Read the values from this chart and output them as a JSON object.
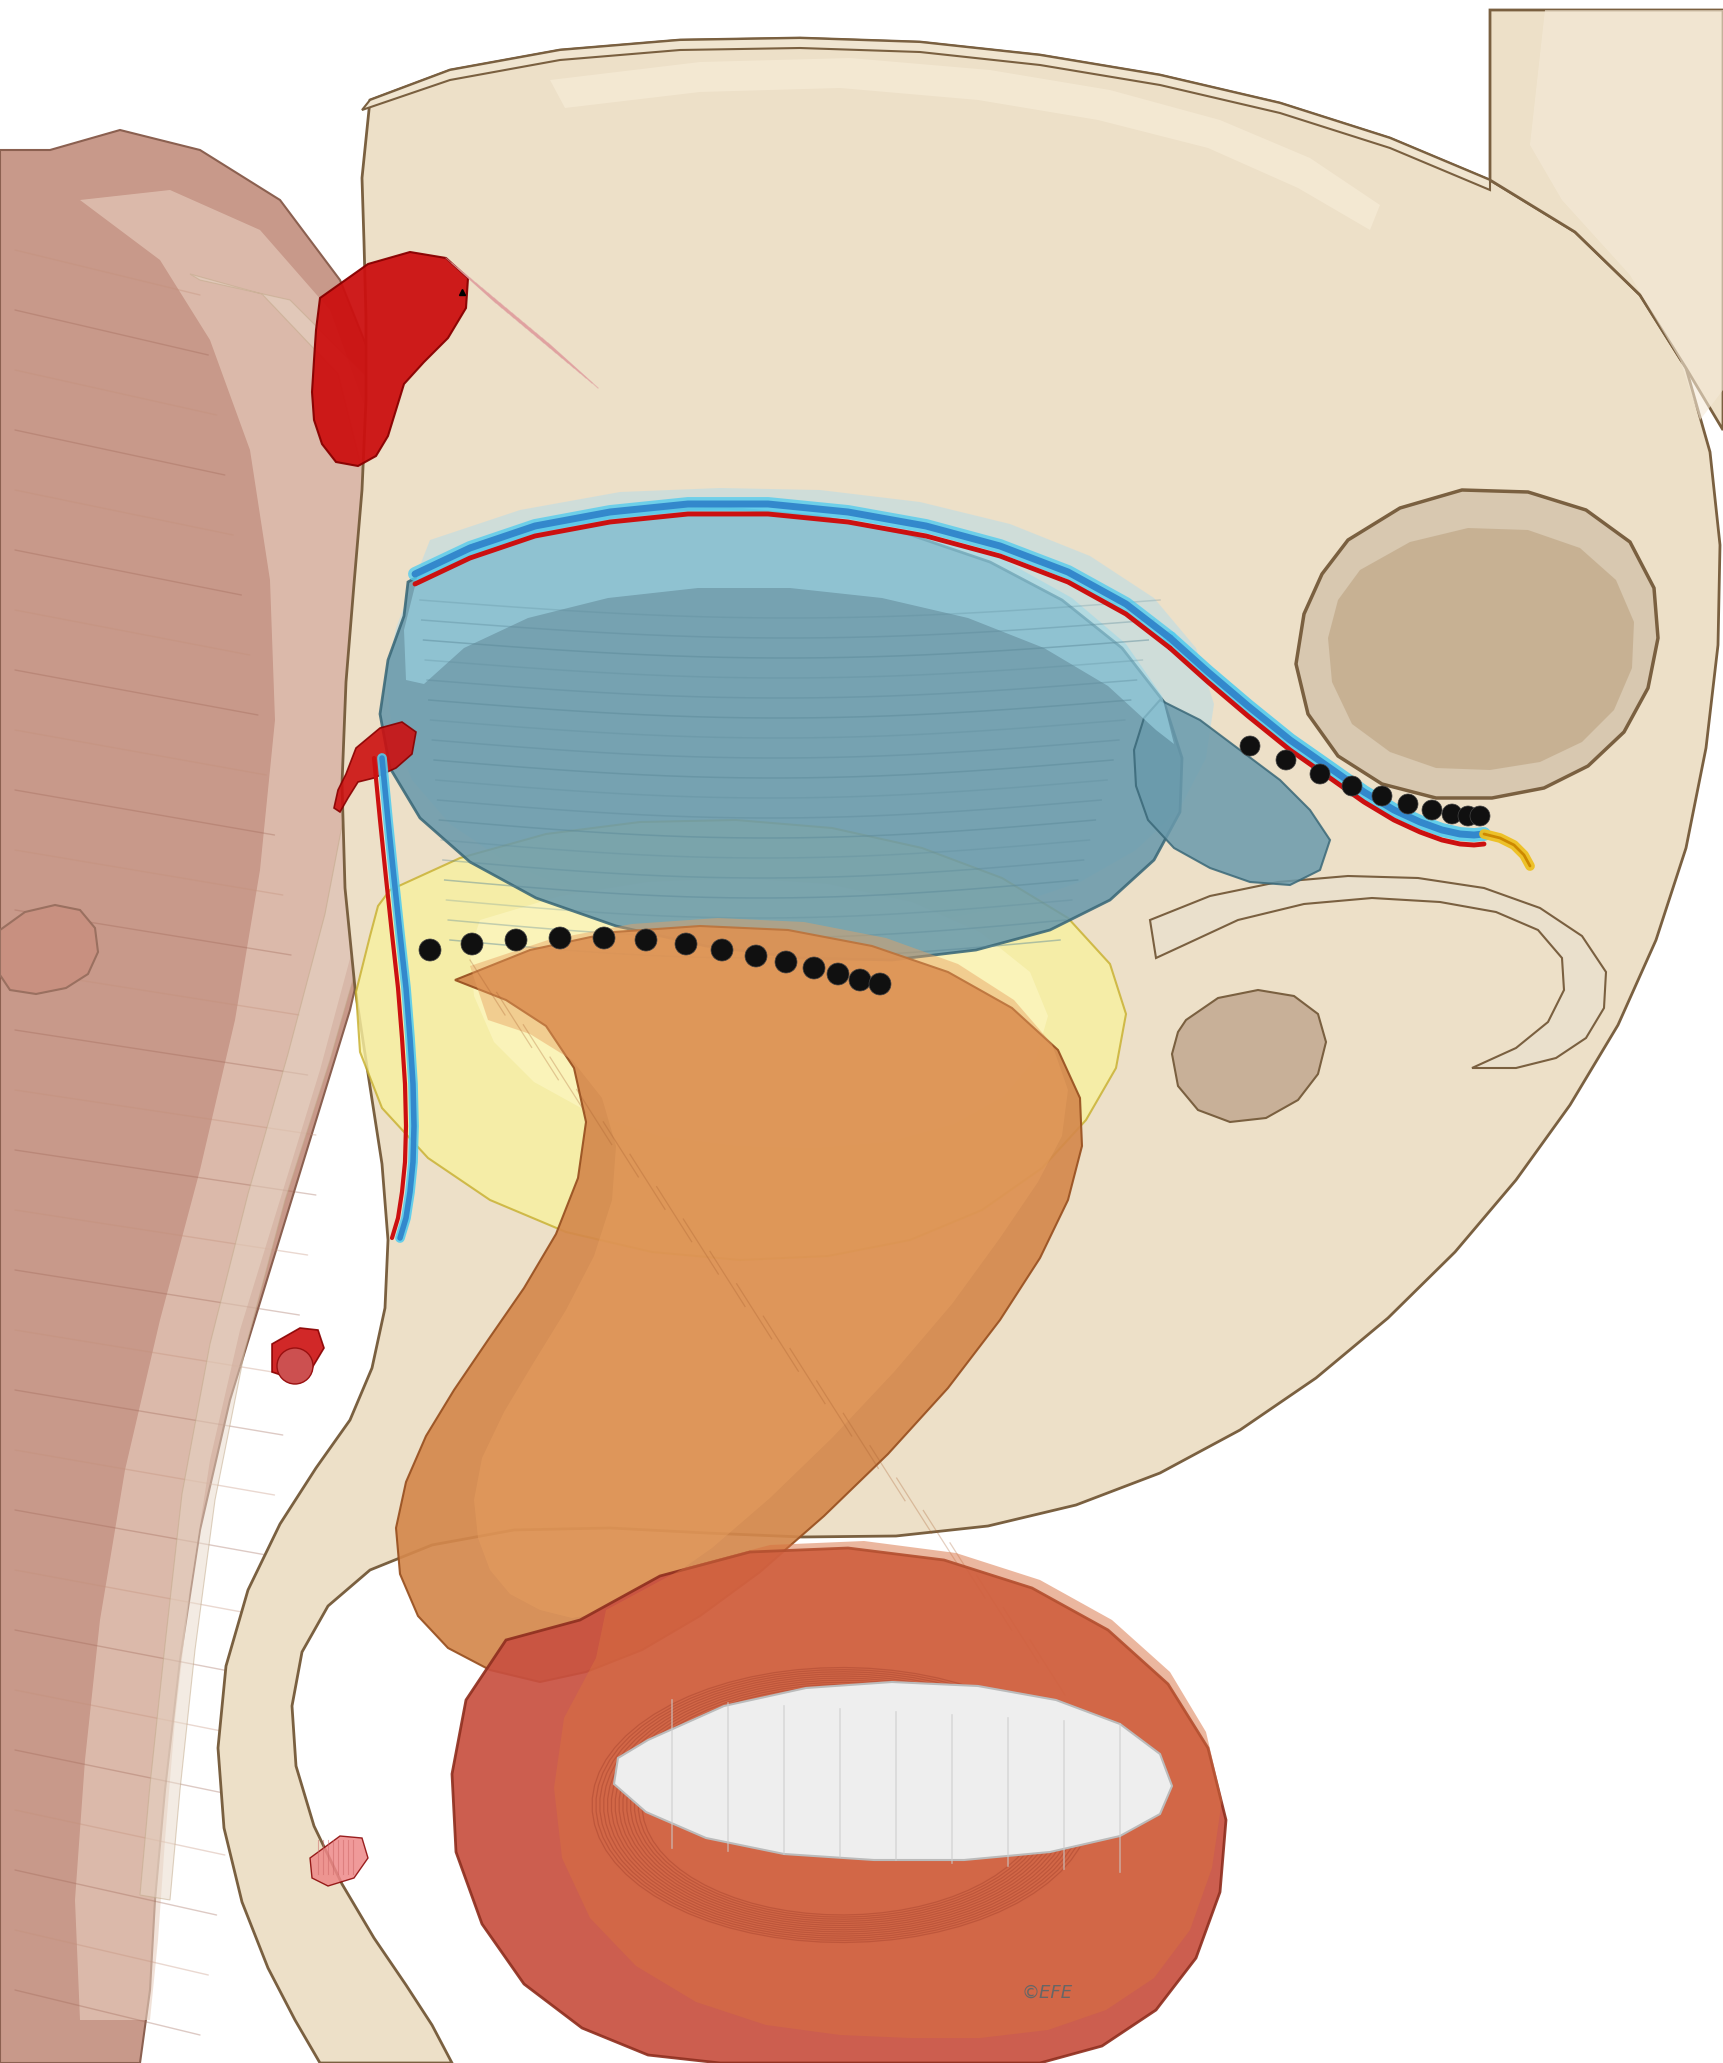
{
  "bg_color": "#FFFFFF",
  "figsize": [
    17.23,
    20.63
  ],
  "dpi": 100,
  "skull_base": "#EDE0C8",
  "skull_light": "#F5EBD8",
  "skull_dark": "#D8C8A8",
  "skull_outline": "#7A6040",
  "skin_outer": "#C8998A",
  "skin_mid": "#D4A898",
  "skin_inner_pale": "#E8D0C0",
  "skin_very_pale": "#F0DDD0",
  "skin_outline": "#8B6050",
  "muscle_pale": "#D8BEB0",
  "muscle_mid": "#C4907A",
  "muscle_dark": "#A06858",
  "muscle_light": "#E0C0B0",
  "orb_blue_dark": "#5A8898",
  "orb_blue_mid": "#6A9AAC",
  "orb_blue_light": "#88BBCC",
  "orb_cyan": "#A0D8E8",
  "orb_outline": "#3A6878",
  "yellow_light": "#F8F0A0",
  "yellow_mid": "#F0E060",
  "yellow_outline": "#C8B030",
  "zyg_orange_top": "#E8A040",
  "zyg_orange_mid": "#D07830",
  "zyg_orange_bot": "#C05828",
  "zyg_red": "#C84030",
  "zyg_outline": "#985020",
  "lip_red": "#C85040",
  "lip_orange": "#D87040",
  "lip_light": "#E09070",
  "lip_outline": "#903020",
  "teeth_white": "#EEEEEE",
  "teeth_outline": "#CCCCCC",
  "red_lig": "#CC1010",
  "red_dark": "#880000",
  "blue_line": "#3388CC",
  "cyan_line": "#55CCEE",
  "yellow_lig": "#EEC020",
  "black_dot": "#101010",
  "copyright_text": "©EFE",
  "copyright_color": "#666666",
  "copyright_size": 13
}
